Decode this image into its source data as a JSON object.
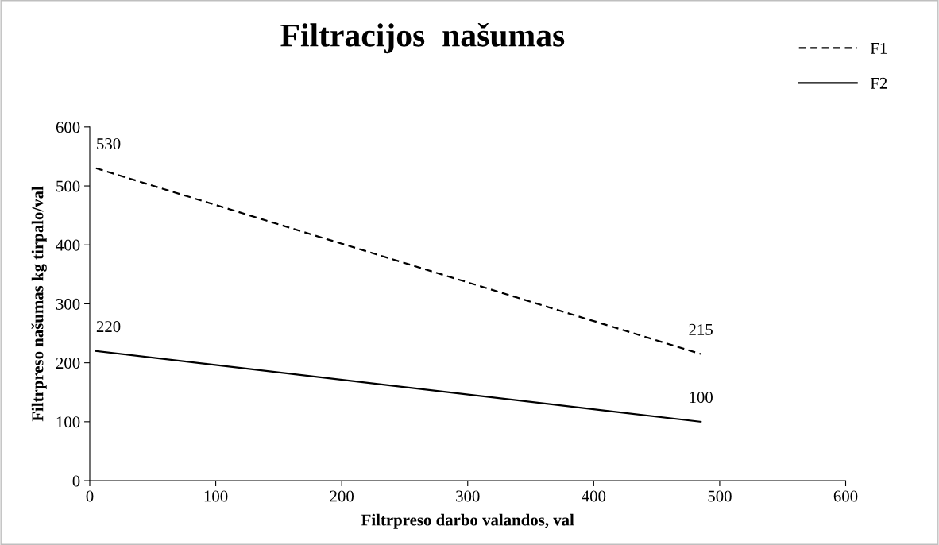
{
  "chart_data": {
    "type": "line",
    "title": "Filtracijos  našumas",
    "xlabel": "Filtrpreso darbo valandos, val",
    "ylabel": "Filtrpreso našumas kg tirpalo/val",
    "x": [
      5,
      485
    ],
    "series": [
      {
        "name": "F1",
        "color": "#000000",
        "line_style": "dashed",
        "values": [
          530,
          215
        ],
        "value_labels": [
          "530",
          "215"
        ]
      },
      {
        "name": "F2",
        "color": "#000000",
        "line_style": "solid",
        "values": [
          220,
          100
        ],
        "value_labels": [
          "220",
          "100"
        ]
      }
    ],
    "xlim": [
      0,
      600
    ],
    "xticks": [
      0,
      100,
      200,
      300,
      400,
      500,
      600
    ],
    "ylim": [
      0,
      600
    ],
    "yticks": [
      0,
      100,
      200,
      300,
      400,
      500,
      600
    ],
    "grid": false,
    "legend": "top right",
    "marker": "none"
  }
}
